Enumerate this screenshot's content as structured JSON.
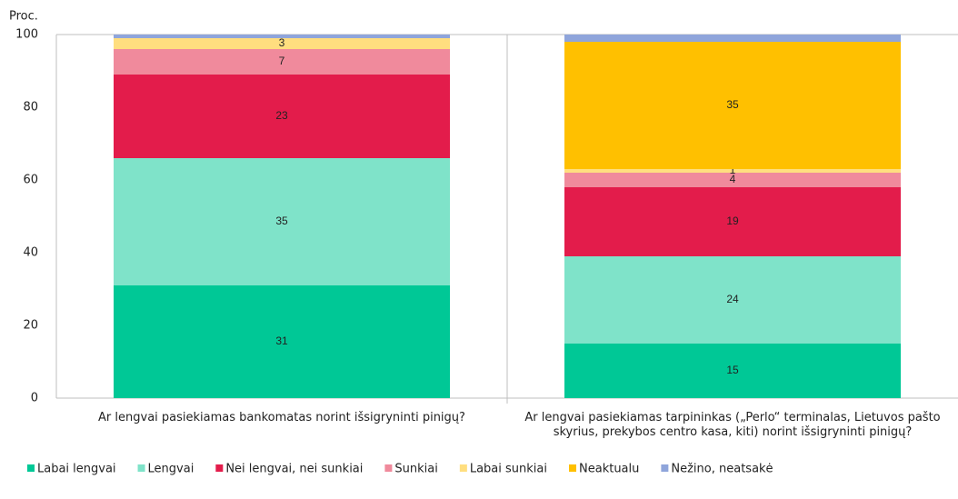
{
  "chart_data": {
    "type": "stacked_bar",
    "y_label": "Proc.",
    "categories": [
      "Ar lengvai pasiekiamas bankomatas norint išsigryninti pinigų?",
      "Ar lengvai pasiekiamas tarpininkas („Perlo“ terminalas, Lietuvos pašto skyrius, prekybos centro kasa, kiti) norint išsigryninti pinigų?"
    ],
    "series": [
      {
        "name": "Labai lengvai",
        "color": "#00c896",
        "values": [
          31,
          15
        ]
      },
      {
        "name": "Lengvai",
        "color": "#7fe3c9",
        "values": [
          35,
          24
        ]
      },
      {
        "name": "Nei lengvai, nei sunkiai",
        "color": "#e31c4b",
        "values": [
          23,
          19
        ]
      },
      {
        "name": "Sunkiai",
        "color": "#f08a9c",
        "values": [
          7,
          4
        ]
      },
      {
        "name": "Labai sunkiai",
        "color": "#ffde7f",
        "values": [
          3,
          1
        ]
      },
      {
        "name": "Neaktualu",
        "color": "#ffc000",
        "values": [
          0,
          35
        ]
      },
      {
        "name": "Nežino, neatsakė",
        "color": "#8fa5db",
        "values": [
          1,
          2
        ],
        "show_labels": false
      }
    ],
    "ylim": [
      0,
      100
    ],
    "yticks": [
      0,
      20,
      40,
      60,
      80,
      100
    ]
  }
}
